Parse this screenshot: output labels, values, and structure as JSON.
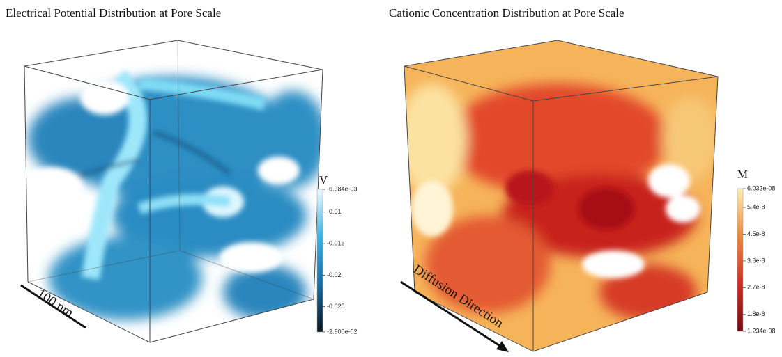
{
  "panels": [
    {
      "title": "Electrical Potential Distribution at Pore Scale",
      "annotation": "100 nm",
      "colorbar": {
        "unit": "V",
        "colors": [
          "#0a1520",
          "#1a6fa6",
          "#38b4e6",
          "#effbff"
        ],
        "ticks": [
          {
            "value": -0.006384,
            "label": "-6.384e-03"
          },
          -0.01,
          -0.015,
          -0.02,
          -0.025,
          {
            "value": -0.029,
            "label": "-2.900e-02"
          }
        ]
      }
    },
    {
      "title": "Cationic Concentration Distribution at Pore Scale",
      "annotation": "Diffusion Direction",
      "colorbar": {
        "unit": "M",
        "colors": [
          "#7a0a12",
          "#d42a26",
          "#f0883a",
          "#fdf0b8"
        ],
        "ticks": [
          {
            "value": 6.032e-08,
            "label": "6.032e-08"
          },
          {
            "value": 5.4e-08,
            "label": "5.4e-8"
          },
          {
            "value": 4.5e-08,
            "label": "4.5e-8"
          },
          {
            "value": 3.6e-08,
            "label": "3.6e-8"
          },
          {
            "value": 2.7e-08,
            "label": "2.7e-8"
          },
          {
            "value": 1.8e-08,
            "label": "1.8e-8"
          },
          {
            "value": 1.234e-08,
            "label": "1.234e-08"
          }
        ]
      }
    }
  ]
}
